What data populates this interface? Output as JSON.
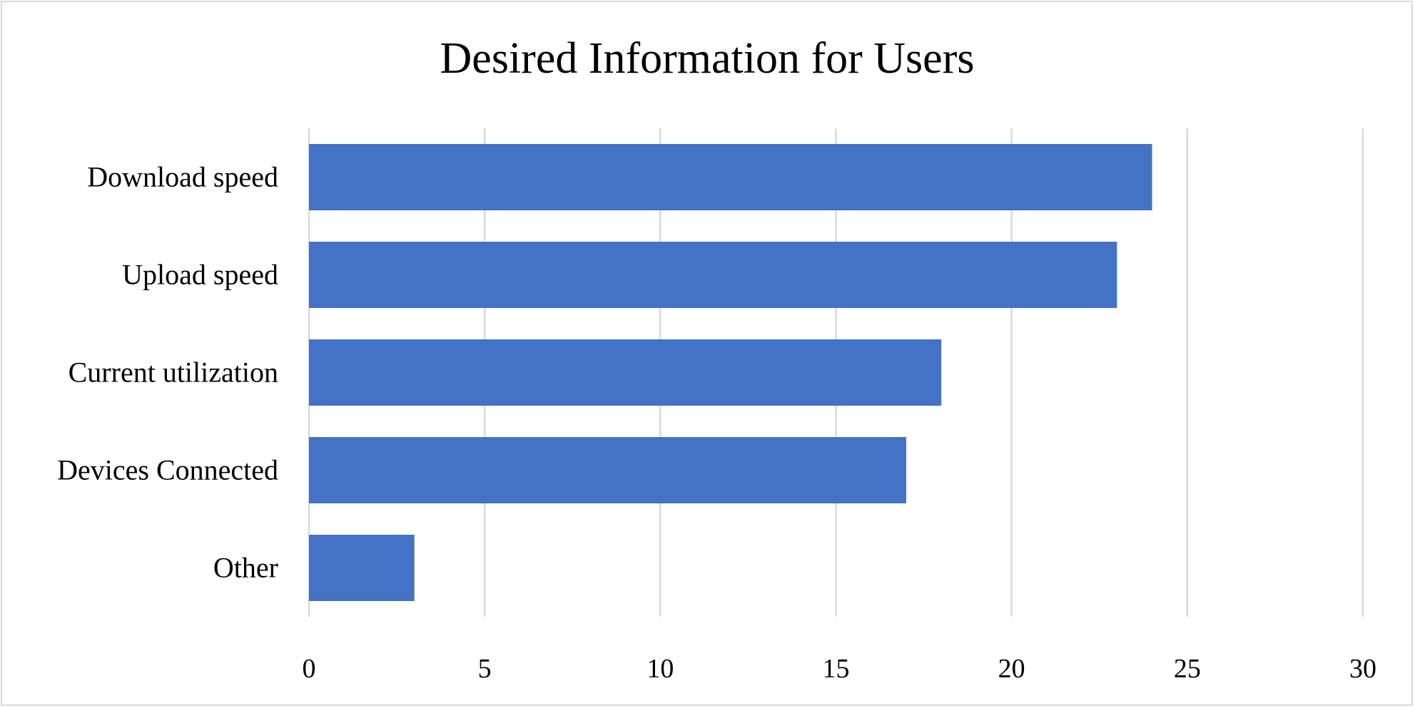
{
  "chart_data": {
    "type": "bar",
    "orientation": "horizontal",
    "title": "Desired Information for Users",
    "xlabel": "",
    "ylabel": "",
    "categories": [
      "Download speed",
      "Upload speed",
      "Current utilization",
      "Devices Connected",
      "Other"
    ],
    "values": [
      24,
      23,
      18,
      17,
      3
    ],
    "xlim": [
      0,
      30
    ],
    "xticks": [
      0,
      5,
      10,
      15,
      20,
      25,
      30
    ],
    "grid": true,
    "legend": "none",
    "bar_color": "#4472C4",
    "grid_color": "#D9D9D9"
  }
}
